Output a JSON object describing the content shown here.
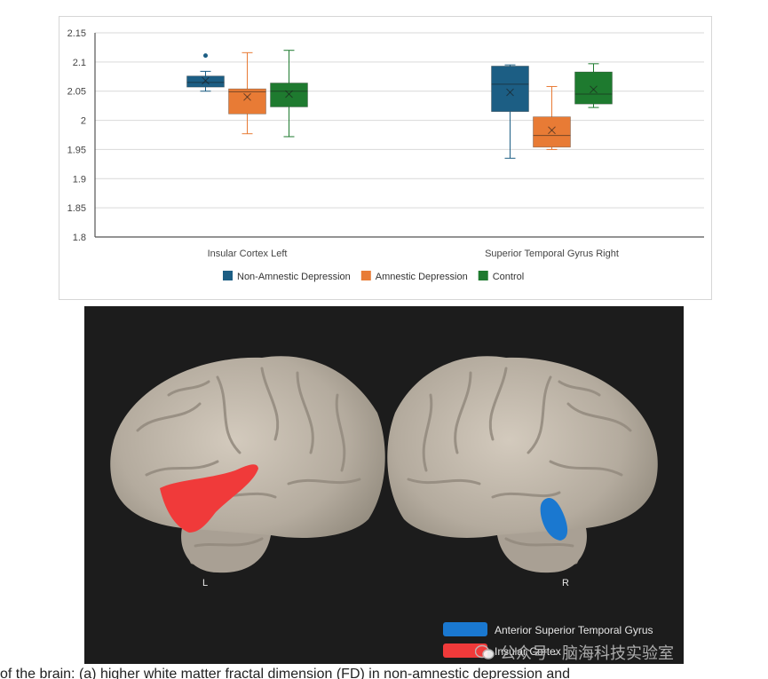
{
  "chart_data": {
    "type": "box",
    "categories": [
      "Insular Cortex Left",
      "Superior Temporal Gyrus Right"
    ],
    "ylim": [
      1.8,
      2.15
    ],
    "yticks": [
      1.8,
      1.85,
      1.9,
      1.95,
      2,
      2.05,
      2.1,
      2.15
    ],
    "ytick_labels": [
      "1.8",
      "1.85",
      "1.9",
      "1.95",
      "2",
      "2.05",
      "2.1",
      "2.15"
    ],
    "grid": true,
    "legend_position": "bottom",
    "series": [
      {
        "name": "Non-Amnestic Depression",
        "color": "#1c5e84",
        "boxes": [
          {
            "min": 2.05,
            "q1": 2.057,
            "median": 2.065,
            "mean": 2.068,
            "q3": 2.076,
            "max": 2.084,
            "outliers": [
              2.111
            ]
          },
          {
            "min": 1.935,
            "q1": 2.015,
            "median": 2.062,
            "mean": 2.048,
            "q3": 2.093,
            "max": 2.095,
            "outliers": []
          }
        ]
      },
      {
        "name": "Amnestic Depression",
        "color": "#e87b35",
        "boxes": [
          {
            "min": 1.977,
            "q1": 2.011,
            "median": 2.049,
            "mean": 2.04,
            "q3": 2.054,
            "max": 2.116,
            "outliers": []
          },
          {
            "min": 1.95,
            "q1": 1.954,
            "median": 1.974,
            "mean": 1.983,
            "q3": 2.006,
            "max": 2.058,
            "outliers": []
          }
        ]
      },
      {
        "name": "Control",
        "color": "#1e7a2f",
        "boxes": [
          {
            "min": 1.972,
            "q1": 2.023,
            "median": 2.05,
            "mean": 2.045,
            "q3": 2.064,
            "max": 2.12,
            "outliers": []
          },
          {
            "min": 2.022,
            "q1": 2.028,
            "median": 2.045,
            "mean": 2.053,
            "q3": 2.083,
            "max": 2.097,
            "outliers": []
          }
        ]
      }
    ]
  },
  "brain": {
    "left_label": "L",
    "right_label": "R",
    "legend": [
      {
        "label": "Anterior Superior Temporal Gyrus",
        "color": "#1a78d0"
      },
      {
        "label": "Insular Cortex",
        "color": "#f03a3a"
      }
    ]
  },
  "watermark": {
    "text": "公众号 · 脑海科技实验室"
  },
  "bottom_text": "of the brain: (a) higher white matter fractal dimension (FD) in non-amnestic depression and"
}
